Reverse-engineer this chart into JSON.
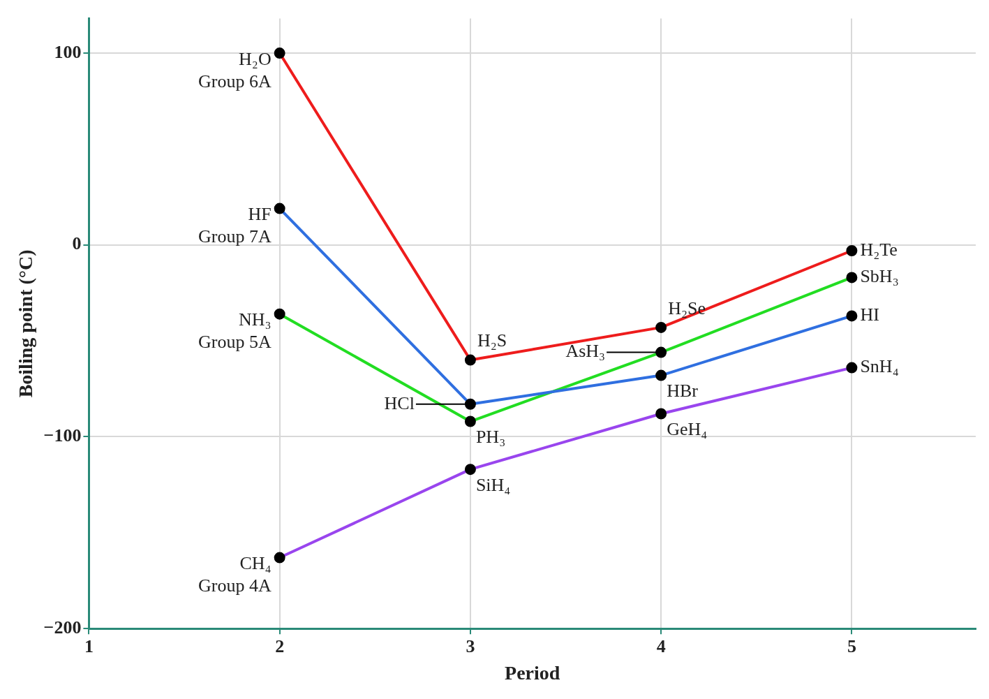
{
  "chart_data": {
    "type": "line",
    "xlabel": "Period",
    "ylabel": "Boiling point (°C)",
    "x": [
      2,
      3,
      4,
      5
    ],
    "series": [
      {
        "name": "Group 6A",
        "color": "#ee1c1c",
        "values": [
          100,
          -60,
          -43,
          -3
        ]
      },
      {
        "name": "Group 7A",
        "color": "#2f6fe0",
        "values": [
          19,
          -83,
          -68,
          -37
        ]
      },
      {
        "name": "Group 5A",
        "color": "#22dd22",
        "values": [
          -36,
          -92,
          -56,
          -17
        ]
      },
      {
        "name": "Group 4A",
        "color": "#9945ee",
        "values": [
          -163,
          -117,
          -88,
          -64
        ]
      }
    ],
    "annotations": [
      {
        "text": "H₂O",
        "x": 2,
        "y": 100
      },
      {
        "text": "H₂S",
        "x": 3,
        "y": -60
      },
      {
        "text": "H₂Se",
        "x": 4,
        "y": -43
      },
      {
        "text": "H₂Te",
        "x": 5,
        "y": -3
      },
      {
        "text": "HF",
        "x": 2,
        "y": 19
      },
      {
        "text": "HCl",
        "x": 3,
        "y": -83
      },
      {
        "text": "HBr",
        "x": 4,
        "y": -68
      },
      {
        "text": "HI",
        "x": 5,
        "y": -37
      },
      {
        "text": "NH₃",
        "x": 2,
        "y": -36
      },
      {
        "text": "PH₃",
        "x": 3,
        "y": -92
      },
      {
        "text": "AsH₃",
        "x": 4,
        "y": -56
      },
      {
        "text": "SbH₃",
        "x": 5,
        "y": -17
      },
      {
        "text": "CH₄",
        "x": 2,
        "y": -163
      },
      {
        "text": "SiH₄",
        "x": 3,
        "y": -117
      },
      {
        "text": "GeH₄",
        "x": 4,
        "y": -88
      },
      {
        "text": "SnH₄",
        "x": 5,
        "y": -64
      }
    ],
    "xlim": [
      1,
      5.65
    ],
    "xticks": [
      1,
      2,
      3,
      4,
      5
    ],
    "ylim": [
      -200,
      118
    ],
    "yticks": [
      -200,
      -100,
      0,
      100
    ],
    "grid": true,
    "legend": false,
    "marker": "circle",
    "line_style": "solid"
  }
}
